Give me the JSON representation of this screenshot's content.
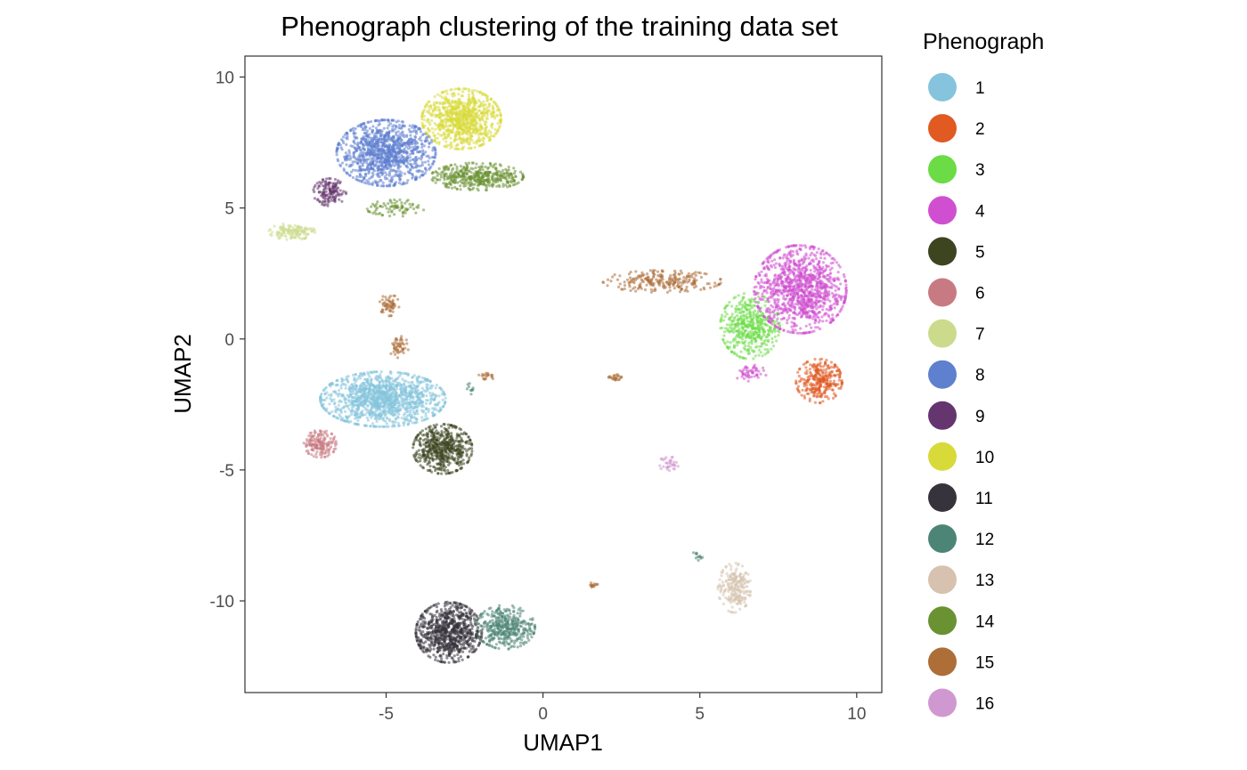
{
  "chart_data": {
    "type": "scatter",
    "title": "Phenograph clustering of the training data set",
    "xlabel": "UMAP1",
    "ylabel": "UMAP2",
    "xlim": [
      -9.5,
      10.8
    ],
    "ylim": [
      -13.5,
      10.8
    ],
    "x_ticks": [
      -5,
      0,
      5,
      10
    ],
    "y_ticks": [
      10,
      5,
      0,
      -5,
      -10
    ],
    "x_tick_labels": [
      "-5",
      "0",
      "5",
      "10"
    ],
    "y_tick_labels": [
      "10",
      "5",
      "0",
      "-5",
      "-10"
    ],
    "grid": false,
    "legend": {
      "title": "Phenograph",
      "placement": "right",
      "entries": [
        {
          "label": "1",
          "color": "#85C4DC"
        },
        {
          "label": "2",
          "color": "#E05A22"
        },
        {
          "label": "3",
          "color": "#6BDC45"
        },
        {
          "label": "4",
          "color": "#D04FD0"
        },
        {
          "label": "5",
          "color": "#3C4520"
        },
        {
          "label": "6",
          "color": "#C87A82"
        },
        {
          "label": "7",
          "color": "#CCDA8C"
        },
        {
          "label": "8",
          "color": "#5F80CF"
        },
        {
          "label": "9",
          "color": "#64356E"
        },
        {
          "label": "10",
          "color": "#D8DA3A"
        },
        {
          "label": "11",
          "color": "#36333D"
        },
        {
          "label": "12",
          "color": "#4C8575"
        },
        {
          "label": "13",
          "color": "#D6C2AE"
        },
        {
          "label": "14",
          "color": "#6A9232"
        },
        {
          "label": "15",
          "color": "#AD6E38"
        },
        {
          "label": "16",
          "color": "#D098D0"
        }
      ]
    },
    "series": [
      {
        "name": "1",
        "color": "#85C4DC",
        "regions": [
          {
            "cx": -5.1,
            "cy": -2.3,
            "rx": 1.9,
            "ry": 1.0,
            "n": 1300
          }
        ]
      },
      {
        "name": "2",
        "color": "#E05A22",
        "regions": [
          {
            "cx": 8.8,
            "cy": -1.6,
            "rx": 0.7,
            "ry": 0.8,
            "n": 300
          }
        ]
      },
      {
        "name": "3",
        "color": "#6BDC45",
        "regions": [
          {
            "cx": 6.6,
            "cy": 0.5,
            "rx": 0.9,
            "ry": 1.2,
            "n": 450
          }
        ]
      },
      {
        "name": "4",
        "color": "#D04FD0",
        "regions": [
          {
            "cx": 8.2,
            "cy": 1.9,
            "rx": 1.4,
            "ry": 1.6,
            "n": 1100
          },
          {
            "cx": 6.6,
            "cy": -1.3,
            "rx": 0.5,
            "ry": 0.3,
            "n": 50
          }
        ]
      },
      {
        "name": "5",
        "color": "#3C4520",
        "regions": [
          {
            "cx": -3.2,
            "cy": -4.2,
            "rx": 0.9,
            "ry": 0.9,
            "n": 550
          }
        ]
      },
      {
        "name": "6",
        "color": "#C87A82",
        "regions": [
          {
            "cx": -7.1,
            "cy": -4.0,
            "rx": 0.5,
            "ry": 0.5,
            "n": 170
          }
        ]
      },
      {
        "name": "7",
        "color": "#CCDA8C",
        "regions": [
          {
            "cx": -8.0,
            "cy": 4.1,
            "rx": 0.7,
            "ry": 0.3,
            "n": 130
          }
        ]
      },
      {
        "name": "8",
        "color": "#5F80CF",
        "regions": [
          {
            "cx": -5.0,
            "cy": 7.1,
            "rx": 1.5,
            "ry": 1.2,
            "n": 1100
          }
        ]
      },
      {
        "name": "9",
        "color": "#64356E",
        "regions": [
          {
            "cx": -6.8,
            "cy": 5.6,
            "rx": 0.5,
            "ry": 0.5,
            "n": 140
          }
        ]
      },
      {
        "name": "10",
        "color": "#D8DA3A",
        "regions": [
          {
            "cx": -2.6,
            "cy": 8.4,
            "rx": 1.2,
            "ry": 1.1,
            "n": 850
          }
        ]
      },
      {
        "name": "11",
        "color": "#36333D",
        "regions": [
          {
            "cx": -3.0,
            "cy": -11.2,
            "rx": 1.0,
            "ry": 1.1,
            "n": 800
          }
        ]
      },
      {
        "name": "12",
        "color": "#4C8575",
        "regions": [
          {
            "cx": -1.2,
            "cy": -11.0,
            "rx": 0.9,
            "ry": 0.8,
            "n": 400
          },
          {
            "cx": 4.9,
            "cy": -8.3,
            "rx": 0.2,
            "ry": 0.15,
            "n": 12
          },
          {
            "cx": -2.3,
            "cy": -1.9,
            "rx": 0.15,
            "ry": 0.2,
            "n": 10
          }
        ]
      },
      {
        "name": "13",
        "color": "#D6C2AE",
        "regions": [
          {
            "cx": 6.1,
            "cy": -9.5,
            "rx": 0.5,
            "ry": 0.9,
            "n": 220
          }
        ]
      },
      {
        "name": "14",
        "color": "#6A9232",
        "regions": [
          {
            "cx": -2.1,
            "cy": 6.2,
            "rx": 1.4,
            "ry": 0.5,
            "n": 420
          },
          {
            "cx": -4.6,
            "cy": 5.0,
            "rx": 1.0,
            "ry": 0.3,
            "n": 80
          }
        ]
      },
      {
        "name": "15",
        "color": "#AD6E38",
        "regions": [
          {
            "cx": 3.8,
            "cy": 2.2,
            "rx": 1.8,
            "ry": 0.4,
            "n": 240
          },
          {
            "cx": -4.9,
            "cy": 1.3,
            "rx": 0.3,
            "ry": 0.4,
            "n": 60
          },
          {
            "cx": -4.6,
            "cy": -0.3,
            "rx": 0.3,
            "ry": 0.4,
            "n": 50
          },
          {
            "cx": 2.3,
            "cy": -1.5,
            "rx": 0.2,
            "ry": 0.15,
            "n": 25
          },
          {
            "cx": 1.6,
            "cy": -9.4,
            "rx": 0.2,
            "ry": 0.1,
            "n": 15
          },
          {
            "cx": -1.8,
            "cy": -1.4,
            "rx": 0.3,
            "ry": 0.15,
            "n": 20
          }
        ]
      },
      {
        "name": "16",
        "color": "#D098D0",
        "regions": [
          {
            "cx": 4.0,
            "cy": -4.8,
            "rx": 0.3,
            "ry": 0.3,
            "n": 35
          }
        ]
      }
    ]
  }
}
